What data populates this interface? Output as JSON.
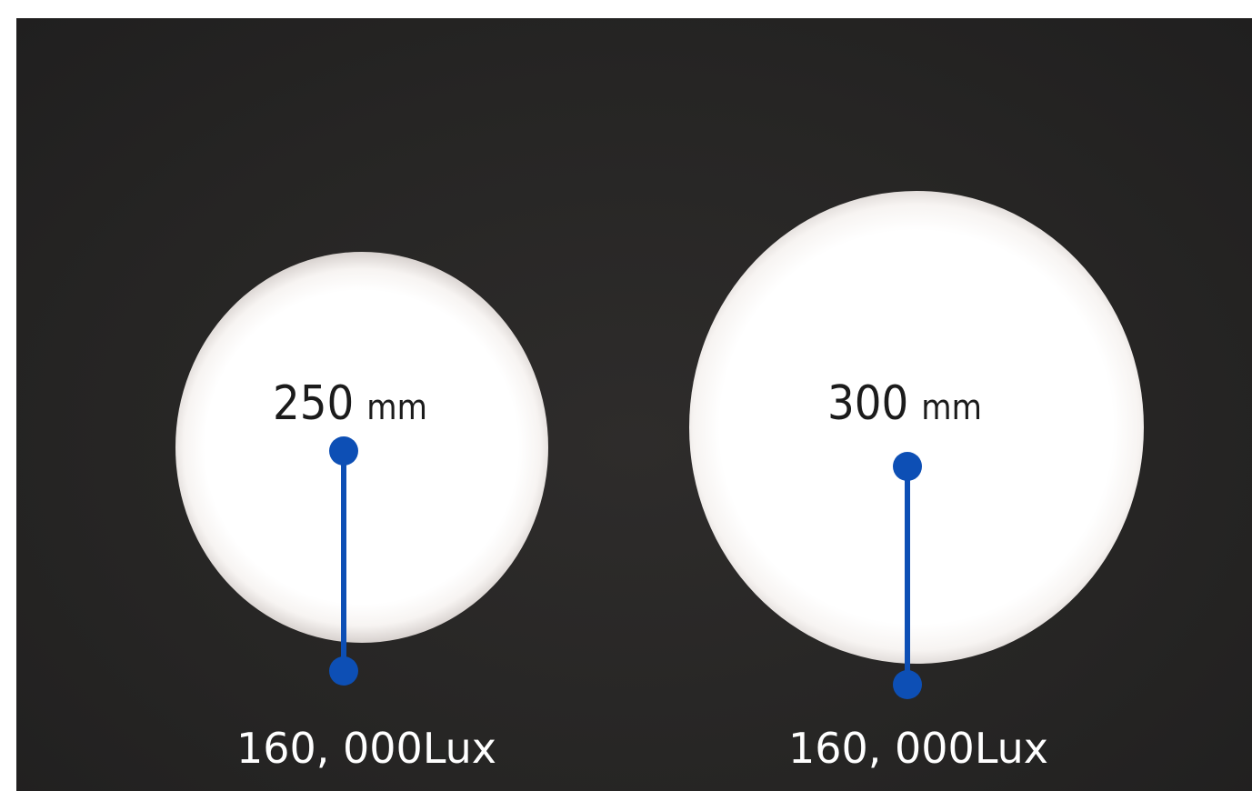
{
  "beams": [
    {
      "distance_value": "250",
      "distance_unit": "mm",
      "illuminance": "160, 000Lux"
    },
    {
      "distance_value": "300",
      "distance_unit": "mm",
      "illuminance": "160, 000Lux"
    }
  ],
  "colors": {
    "background": "#262524",
    "spot": "#ffffff",
    "marker": "#0d4fb5",
    "illuminance_text": "#ffffff",
    "distance_text": "#1b1b1b"
  }
}
